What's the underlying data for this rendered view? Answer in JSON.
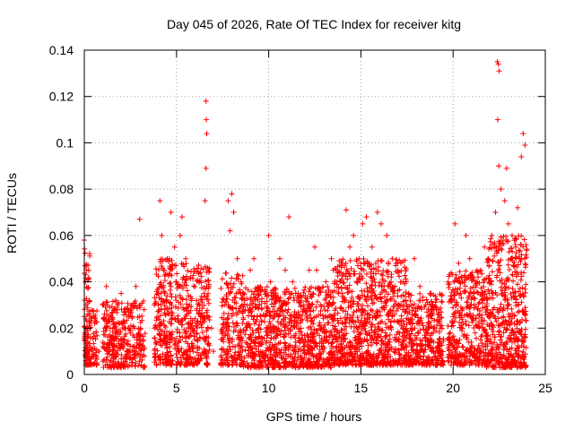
{
  "chart_data": {
    "type": "scatter",
    "title": "Day 045 of 2026, Rate Of TEC Index for receiver kitg",
    "xlabel": "GPS time / hours",
    "ylabel": "ROTI / TECUs",
    "xlim": [
      0,
      25
    ],
    "ylim": [
      0,
      0.14
    ],
    "xticks": [
      0,
      5,
      10,
      15,
      20,
      25
    ],
    "yticks": [
      0,
      0.02,
      0.04,
      0.06,
      0.08,
      0.1,
      0.12,
      0.14
    ],
    "xtick_labels": [
      "0",
      "5",
      "10",
      "15",
      "20",
      "25"
    ],
    "ytick_labels": [
      "0",
      "0.02",
      "0.04",
      "0.06",
      "0.08",
      "0.1",
      "0.12",
      "0.14"
    ],
    "grid": true,
    "marker": "+",
    "marker_color": "#ff0000",
    "series": [
      {
        "name": "ROTI",
        "x": [
          0.0,
          0.05,
          0.1,
          0.15,
          0.2,
          0.1,
          0.05,
          0.3,
          0.5,
          0.8,
          1.0,
          1.2,
          1.4,
          1.6,
          1.8,
          2.0,
          2.2,
          2.4,
          2.6,
          2.8,
          3.0,
          3.2,
          3.0,
          2.7,
          3.8,
          4.0,
          4.1,
          4.2,
          4.3,
          4.5,
          4.7,
          4.9,
          5.0,
          5.2,
          5.3,
          5.5,
          5.7,
          5.9,
          6.1,
          6.3,
          6.5,
          6.6,
          6.62,
          6.64,
          6.6,
          6.55,
          6.9,
          7.0,
          7.6,
          7.8,
          7.9,
          8.0,
          8.1,
          8.3,
          8.5,
          8.7,
          9.0,
          9.2,
          9.5,
          9.8,
          10.0,
          10.1,
          10.3,
          10.6,
          10.9,
          11.1,
          11.3,
          11.6,
          11.9,
          12.2,
          12.5,
          12.6,
          12.8,
          13.1,
          13.4,
          13.7,
          14.0,
          14.2,
          14.4,
          14.6,
          14.9,
          15.1,
          15.3,
          15.6,
          15.9,
          16.1,
          16.4,
          16.7,
          17.0,
          17.3,
          17.6,
          17.9,
          18.2,
          18.5,
          18.8,
          19.1,
          19.3,
          19.8,
          20.0,
          20.1,
          20.3,
          20.5,
          20.7,
          20.9,
          21.1,
          21.3,
          21.5,
          21.7,
          21.9,
          22.1,
          22.3,
          22.4,
          22.45,
          22.5,
          22.42,
          22.48,
          22.6,
          22.8,
          23.0,
          23.2,
          23.4,
          23.6,
          23.8,
          23.9,
          23.7,
          23.5,
          22.9
        ],
        "y": [
          0.058,
          0.04,
          0.03,
          0.02,
          0.01,
          0.005,
          0.015,
          0.02,
          0.025,
          0.01,
          0.03,
          0.038,
          0.02,
          0.015,
          0.03,
          0.035,
          0.02,
          0.01,
          0.03,
          0.038,
          0.025,
          0.015,
          0.067,
          0.012,
          0.02,
          0.035,
          0.075,
          0.06,
          0.045,
          0.05,
          0.07,
          0.055,
          0.04,
          0.06,
          0.068,
          0.05,
          0.03,
          0.02,
          0.015,
          0.025,
          0.035,
          0.118,
          0.11,
          0.104,
          0.089,
          0.075,
          0.02,
          0.01,
          0.03,
          0.075,
          0.062,
          0.078,
          0.07,
          0.05,
          0.04,
          0.032,
          0.045,
          0.05,
          0.03,
          0.025,
          0.06,
          0.04,
          0.035,
          0.05,
          0.045,
          0.068,
          0.04,
          0.035,
          0.03,
          0.045,
          0.055,
          0.045,
          0.03,
          0.04,
          0.05,
          0.04,
          0.035,
          0.071,
          0.055,
          0.06,
          0.05,
          0.065,
          0.068,
          0.055,
          0.07,
          0.065,
          0.06,
          0.05,
          0.045,
          0.04,
          0.035,
          0.05,
          0.038,
          0.03,
          0.035,
          0.028,
          0.02,
          0.015,
          0.025,
          0.065,
          0.048,
          0.04,
          0.06,
          0.05,
          0.035,
          0.04,
          0.045,
          0.055,
          0.05,
          0.06,
          0.07,
          0.135,
          0.134,
          0.131,
          0.11,
          0.09,
          0.08,
          0.075,
          0.065,
          0.06,
          0.055,
          0.05,
          0.104,
          0.099,
          0.094,
          0.072,
          0.089
        ]
      }
    ],
    "noise_blocks": [
      {
        "x0": 0.0,
        "x1": 0.7,
        "lo": 0.004,
        "hi": 0.028,
        "n": 120
      },
      {
        "x0": 0.0,
        "x1": 0.3,
        "lo": 0.028,
        "hi": 0.056,
        "n": 25
      },
      {
        "x0": 1.0,
        "x1": 3.3,
        "lo": 0.003,
        "hi": 0.032,
        "n": 340
      },
      {
        "x0": 3.8,
        "x1": 4.8,
        "lo": 0.004,
        "hi": 0.05,
        "n": 220
      },
      {
        "x0": 4.9,
        "x1": 6.8,
        "lo": 0.004,
        "hi": 0.048,
        "n": 330
      },
      {
        "x0": 7.4,
        "x1": 8.6,
        "lo": 0.004,
        "hi": 0.045,
        "n": 200
      },
      {
        "x0": 8.6,
        "x1": 13.5,
        "lo": 0.003,
        "hi": 0.038,
        "n": 900
      },
      {
        "x0": 13.5,
        "x1": 17.5,
        "lo": 0.004,
        "hi": 0.05,
        "n": 850
      },
      {
        "x0": 17.5,
        "x1": 19.5,
        "lo": 0.004,
        "hi": 0.035,
        "n": 340
      },
      {
        "x0": 19.7,
        "x1": 21.8,
        "lo": 0.004,
        "hi": 0.045,
        "n": 380
      },
      {
        "x0": 21.8,
        "x1": 24.0,
        "lo": 0.003,
        "hi": 0.06,
        "n": 520
      }
    ]
  }
}
